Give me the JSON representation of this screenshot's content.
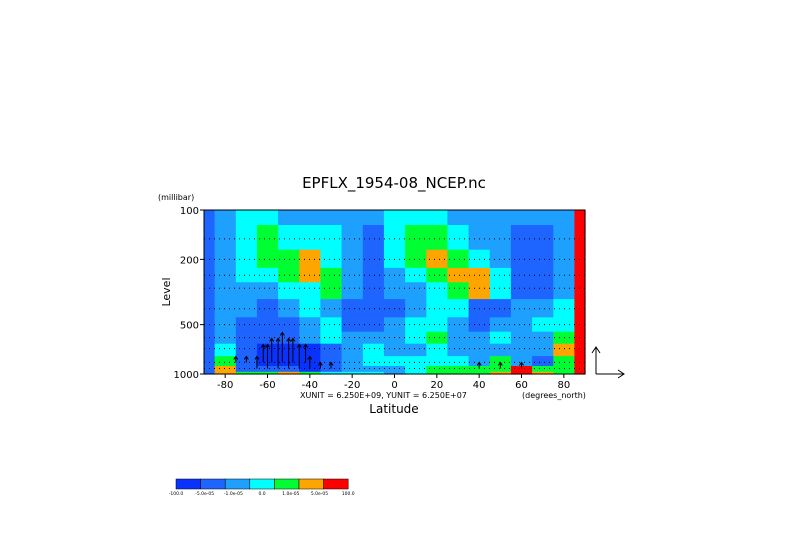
{
  "chart_data": {
    "type": "heatmap",
    "title": "EPFLX_1954-08_NCEP.nc",
    "xlabel": "Latitude",
    "ylabel": "Level",
    "y_units": "(millibar)",
    "x_units": "(degrees_north)",
    "vector_units": "XUNIT = 6.250E+09, YUNIT = 6.250E+07",
    "x_range": [
      -90,
      90
    ],
    "y_range": [
      1000,
      100
    ],
    "y_scale": "log",
    "x_ticks": [
      -80,
      -60,
      -40,
      -20,
      0,
      20,
      40,
      60,
      80
    ],
    "x_tick_labels": [
      "-80",
      "-60",
      "-40",
      "-20",
      "0",
      "20",
      "40",
      "60",
      "80"
    ],
    "y_ticks": [
      1000,
      500,
      200,
      100
    ],
    "y_tick_labels": [
      "1000",
      "500",
      "200",
      "100"
    ],
    "levels": [
      1000,
      925,
      850,
      700,
      600,
      500,
      400,
      300,
      250,
      200,
      150,
      100
    ],
    "latitudes": [
      -90,
      -80,
      -70,
      -60,
      -50,
      -40,
      -30,
      -20,
      -10,
      0,
      10,
      20,
      30,
      40,
      50,
      60,
      70,
      80,
      90
    ],
    "class_grid": [
      [
        1,
        5,
        4,
        4,
        5,
        4,
        3,
        3,
        3,
        2,
        3,
        4,
        4,
        4,
        5,
        6,
        5,
        4,
        6
      ],
      [
        1,
        5,
        1,
        1,
        1,
        0,
        1,
        2,
        2,
        2,
        3,
        4,
        4,
        4,
        4,
        6,
        4,
        4,
        6
      ],
      [
        1,
        4,
        1,
        0,
        0,
        0,
        1,
        2,
        3,
        3,
        3,
        3,
        3,
        2,
        4,
        2,
        1,
        4,
        6
      ],
      [
        1,
        3,
        1,
        0,
        0,
        0,
        1,
        2,
        3,
        2,
        2,
        3,
        2,
        2,
        2,
        2,
        2,
        5,
        6
      ],
      [
        1,
        2,
        1,
        1,
        1,
        2,
        3,
        2,
        2,
        2,
        3,
        4,
        2,
        2,
        3,
        2,
        2,
        4,
        6
      ],
      [
        1,
        2,
        1,
        1,
        1,
        2,
        3,
        1,
        1,
        2,
        3,
        3,
        2,
        1,
        2,
        2,
        3,
        3,
        6
      ],
      [
        1,
        2,
        2,
        1,
        2,
        3,
        2,
        1,
        1,
        1,
        2,
        3,
        3,
        1,
        1,
        2,
        2,
        3,
        6
      ],
      [
        1,
        2,
        2,
        2,
        3,
        3,
        4,
        2,
        1,
        2,
        2,
        3,
        4,
        5,
        3,
        1,
        1,
        2,
        6
      ],
      [
        1,
        2,
        3,
        3,
        4,
        5,
        4,
        2,
        1,
        2,
        3,
        4,
        5,
        5,
        3,
        1,
        1,
        2,
        6
      ],
      [
        1,
        2,
        3,
        4,
        4,
        5,
        3,
        2,
        1,
        3,
        4,
        5,
        4,
        3,
        2,
        1,
        1,
        2,
        6
      ],
      [
        1,
        2,
        3,
        4,
        3,
        3,
        3,
        2,
        1,
        3,
        4,
        4,
        3,
        2,
        2,
        1,
        1,
        2,
        6
      ],
      [
        1,
        2,
        3,
        3,
        2,
        2,
        2,
        2,
        2,
        3,
        3,
        3,
        2,
        2,
        2,
        2,
        2,
        2,
        6
      ]
    ],
    "color_classes": [
      "#0a32ff",
      "#1e64ff",
      "#1ea0ff",
      "#00ffff",
      "#00ff32",
      "#ffa500",
      "#ff0000"
    ],
    "colorbar": {
      "colors": [
        "#0a32ff",
        "#1e64ff",
        "#1ea0ff",
        "#00ffff",
        "#00ff32",
        "#ffa500",
        "#ff0000"
      ],
      "labels": [
        "-100.0",
        "-5.0e-05",
        "-1.0e-05",
        "0.0",
        "1.0e-05",
        "5.0e-05",
        "100.0"
      ]
    },
    "vectors": [
      {
        "lat": -75,
        "lev": 850,
        "u": 0,
        "v": 1
      },
      {
        "lat": -70,
        "lev": 850,
        "u": 0,
        "v": 1
      },
      {
        "lat": -65,
        "lev": 925,
        "u": 0,
        "v": 2
      },
      {
        "lat": -62,
        "lev": 850,
        "u": 0,
        "v": 3
      },
      {
        "lat": -60,
        "lev": 925,
        "u": 0,
        "v": 4
      },
      {
        "lat": -58,
        "lev": 850,
        "u": 0,
        "v": 4
      },
      {
        "lat": -55,
        "lev": 925,
        "u": 0,
        "v": 5
      },
      {
        "lat": -53,
        "lev": 850,
        "u": 0,
        "v": 5
      },
      {
        "lat": -50,
        "lev": 925,
        "u": 0,
        "v": 5
      },
      {
        "lat": -48,
        "lev": 850,
        "u": 0,
        "v": 4
      },
      {
        "lat": -45,
        "lev": 925,
        "u": 0,
        "v": 4
      },
      {
        "lat": -42,
        "lev": 850,
        "u": 0,
        "v": 3
      },
      {
        "lat": -40,
        "lev": 925,
        "u": 0,
        "v": 2
      },
      {
        "lat": -35,
        "lev": 925,
        "u": 0,
        "v": 1
      },
      {
        "lat": -30,
        "lev": 925,
        "u": 0,
        "v": 1
      },
      {
        "lat": 40,
        "lev": 925,
        "u": 0,
        "v": 1
      },
      {
        "lat": 50,
        "lev": 925,
        "u": 0,
        "v": 1
      },
      {
        "lat": 60,
        "lev": 925,
        "u": 0,
        "v": 1
      }
    ]
  }
}
